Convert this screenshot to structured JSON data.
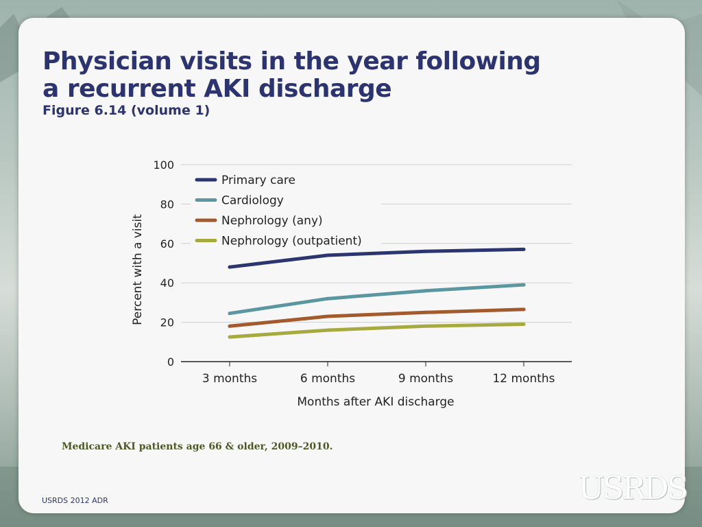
{
  "slide": {
    "title": "Physician visits in the year following a recurrent AKI discharge",
    "subtitle": "Figure 6.14 (volume 1)",
    "note": "Medicare AKI patients age 66 & older, 2009–2010.",
    "footer": "USRDS 2012 ADR",
    "logo_text": "USRDS"
  },
  "chart_data": {
    "type": "line",
    "categories": [
      "3 months",
      "6 months",
      "9 months",
      "12 months"
    ],
    "xlabel": "Months after AKI discharge",
    "ylabel": "Percent with a visit",
    "ylim": [
      0,
      100
    ],
    "yticks": [
      0,
      20,
      40,
      60,
      80,
      100
    ],
    "grid": true,
    "legend_position": "top-left",
    "series": [
      {
        "name": "Primary care",
        "color": "#2b3570",
        "values": [
          48,
          54,
          56,
          57
        ]
      },
      {
        "name": "Cardiology",
        "color": "#5b97a0",
        "values": [
          24.5,
          32,
          36,
          39
        ]
      },
      {
        "name": "Nephrology (any)",
        "color": "#a35a2c",
        "values": [
          18,
          23,
          25,
          26.5
        ]
      },
      {
        "name": "Nephrology (outpatient)",
        "color": "#a6aa3f",
        "values": [
          12.5,
          16,
          18,
          19
        ]
      }
    ]
  }
}
